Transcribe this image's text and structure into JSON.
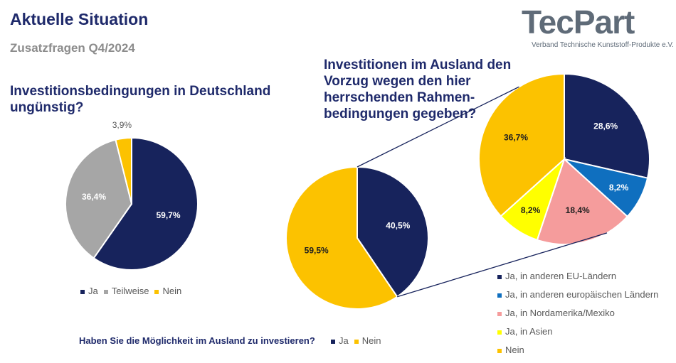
{
  "header": {
    "title": "Aktuelle Situation",
    "subtitle": "Zusatzfragen Q4/2024",
    "logo_text": "TecPart",
    "logo_sub": "Verband Technische Kunststoff-Produkte e.V."
  },
  "colors": {
    "navy": "#17235c",
    "gray": "#a6a6a6",
    "gold": "#fcc200",
    "blue": "#0f6fbf",
    "pink": "#f59c9c",
    "yellow": "#ffff00"
  },
  "chart_data": [
    {
      "type": "pie",
      "title": "Investitionsbedingungen in Deutschland ungünstig?",
      "slices": [
        {
          "label": "Ja",
          "value": 59.7,
          "text": "59,7%",
          "color": "#17235c"
        },
        {
          "label": "Teilweise",
          "value": 36.4,
          "text": "36,4%",
          "color": "#a6a6a6"
        },
        {
          "label": "Nein",
          "value": 3.9,
          "text": "3,9%",
          "color": "#fcc200"
        }
      ],
      "legend": "bottom"
    },
    {
      "type": "pie",
      "title": "Haben Sie die Möglichkeit im Ausland zu investieren?",
      "slices": [
        {
          "label": "Ja",
          "value": 40.5,
          "text": "40,5%",
          "color": "#17235c"
        },
        {
          "label": "Nein",
          "value": 59.5,
          "text": "59,5%",
          "color": "#fcc200"
        }
      ],
      "legend": "bottom"
    },
    {
      "type": "pie",
      "title": "Investitionen im Ausland den Vorzug wegen den hier herrschenden Rahmen-bedingungen gegeben?",
      "slices": [
        {
          "label": "Ja, in anderen EU-Ländern",
          "value": 28.6,
          "text": "28,6%",
          "color": "#17235c"
        },
        {
          "label": "Ja, in anderen europäischen Ländern",
          "value": 8.2,
          "text": "8,2%",
          "color": "#0f6fbf"
        },
        {
          "label": "Ja, in Nordamerika/Mexiko",
          "value": 18.4,
          "text": "18,4%",
          "color": "#f59c9c"
        },
        {
          "label": "Ja, in Asien",
          "value": 8.2,
          "text": "8,2%",
          "color": "#ffff00"
        },
        {
          "label": "Nein",
          "value": 36.7,
          "text": "36,7%",
          "color": "#fcc200"
        }
      ],
      "legend": "bottom-right"
    }
  ]
}
